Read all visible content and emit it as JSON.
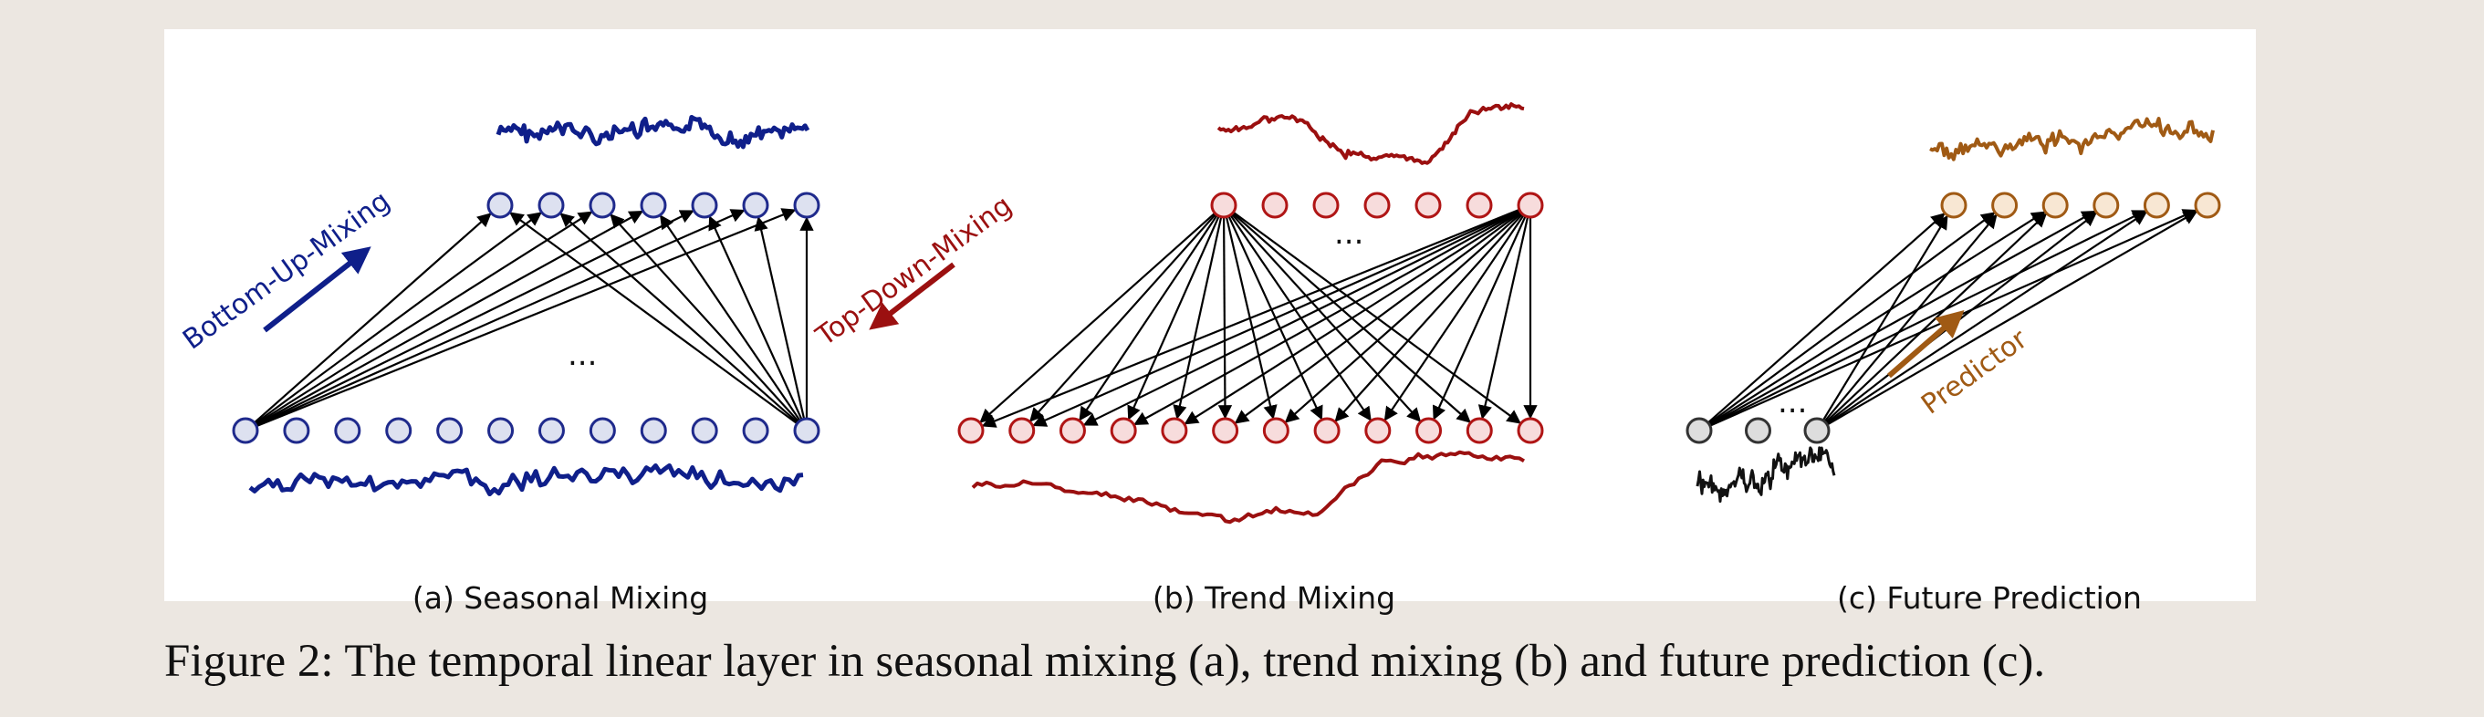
{
  "panels": [
    {
      "id": "seasonal",
      "caption": "(a) Seasonal Mixing",
      "arrow_label": "Bottom-Up-Mixing",
      "ellipsis": "...",
      "node_color": "#1f2a8c",
      "node_fill": "#dde1f0",
      "node_count_top": 7,
      "node_count_bottom": 12
    },
    {
      "id": "trend",
      "caption": "(b) Trend Mixing",
      "arrow_label": "Top-Down-Mixing",
      "ellipsis": "...",
      "node_color": "#b01515",
      "node_fill": "#f7dcdc",
      "node_count_top": 7,
      "node_count_bottom": 12
    },
    {
      "id": "prediction",
      "caption": "(c) Future Prediction",
      "arrow_label": "Predictor",
      "ellipsis": "...",
      "node_color": "#a05a14",
      "node_fill": "#f8e7d3",
      "input_node_color": "#333333",
      "input_node_fill": "#dddddd",
      "node_count_top": 6,
      "node_count_bottom": 3
    }
  ],
  "figure_caption": "Figure 2: The temporal linear layer in seasonal mixing (a), trend mixing (b) and future prediction (c).",
  "colors": {
    "seasonal": "#0f1f8a",
    "trend": "#9b1010",
    "prediction": "#a05a14",
    "edges": "#000000",
    "background": "#ece7e1"
  }
}
